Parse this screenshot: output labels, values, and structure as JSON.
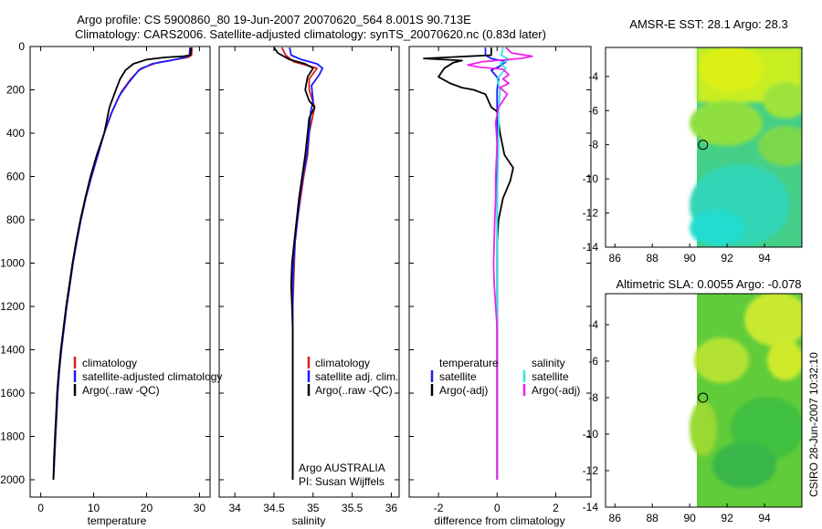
{
  "figure": {
    "title_line1": "Argo profile: CS 5900860_80 19-Jun-2007 20070620_564 8.001S 90.713E",
    "title_line2": "Climatology: CARS2006. Satellite-adjusted climatology: synTS_20070620.nc (0.83d later)",
    "credit": "CSIRO 28-Jun-2007 10:32:10"
  },
  "colors": {
    "climatology": "#d42020",
    "satellite": "#1a1aff",
    "argo": "#000000",
    "sat_salinity": "#33e5e5",
    "argo_adj_salinity": "#ee22ee",
    "map_marker": "#000000"
  },
  "chart_data": [
    {
      "type": "line",
      "id": "temperature_profile",
      "xlabel": "temperature",
      "ylabel": "",
      "xlim": [
        -2,
        32
      ],
      "ylim": [
        2080,
        0
      ],
      "xticks": [
        0,
        10,
        20,
        30
      ],
      "yticks": [
        0,
        200,
        400,
        600,
        800,
        1000,
        1200,
        1400,
        1600,
        1800,
        2000
      ],
      "legend": [
        "climatology",
        "satellite-adjusted climatology",
        "Argo(..raw -QC)"
      ],
      "series": [
        {
          "name": "climatology",
          "color_key": "climatology",
          "points": [
            [
              28.6,
              5
            ],
            [
              28.5,
              40
            ],
            [
              27.8,
              50
            ],
            [
              25.5,
              60
            ],
            [
              22,
              75
            ],
            [
              19,
              100
            ],
            [
              17,
              150
            ],
            [
              15.2,
              210
            ],
            [
              13.5,
              300
            ],
            [
              12,
              400
            ],
            [
              10.8,
              500
            ],
            [
              9.6,
              600
            ],
            [
              8.5,
              700
            ],
            [
              7.6,
              800
            ],
            [
              6.8,
              900
            ],
            [
              6.1,
              1000
            ],
            [
              5.5,
              1100
            ],
            [
              4.9,
              1200
            ],
            [
              4.4,
              1300
            ],
            [
              3.9,
              1400
            ],
            [
              3.5,
              1500
            ],
            [
              3.2,
              1600
            ],
            [
              3.0,
              1700
            ],
            [
              2.8,
              1800
            ],
            [
              2.6,
              1900
            ],
            [
              2.4,
              2000
            ]
          ]
        },
        {
          "name": "satellite",
          "color_key": "satellite",
          "points": [
            [
              28.2,
              5
            ],
            [
              28.1,
              40
            ],
            [
              27.3,
              50
            ],
            [
              24.5,
              65
            ],
            [
              21,
              80
            ],
            [
              18.5,
              110
            ],
            [
              16.5,
              170
            ],
            [
              14.8,
              230
            ],
            [
              13.3,
              310
            ],
            [
              12,
              400
            ],
            [
              10.8,
              500
            ],
            [
              9.6,
              600
            ],
            [
              8.5,
              700
            ],
            [
              7.6,
              800
            ],
            [
              6.8,
              900
            ],
            [
              6.1,
              1000
            ],
            [
              5.5,
              1100
            ],
            [
              4.9,
              1200
            ],
            [
              4.4,
              1300
            ],
            [
              3.9,
              1400
            ],
            [
              3.5,
              1500
            ],
            [
              3.2,
              1600
            ],
            [
              3.0,
              1700
            ],
            [
              2.8,
              1800
            ],
            [
              2.6,
              1900
            ],
            [
              2.4,
              2000
            ]
          ]
        },
        {
          "name": "argo",
          "color_key": "argo",
          "points": [
            [
              28.4,
              5
            ],
            [
              28.3,
              40
            ],
            [
              27,
              45
            ],
            [
              23.5,
              50
            ],
            [
              20,
              60
            ],
            [
              17.5,
              80
            ],
            [
              16,
              110
            ],
            [
              15,
              150
            ],
            [
              14.2,
              200
            ],
            [
              13,
              280
            ],
            [
              12,
              400
            ],
            [
              10.6,
              500
            ],
            [
              9.4,
              600
            ],
            [
              8.4,
              700
            ],
            [
              7.5,
              800
            ],
            [
              6.7,
              900
            ],
            [
              6.0,
              1000
            ],
            [
              5.4,
              1100
            ],
            [
              4.8,
              1200
            ],
            [
              4.3,
              1300
            ],
            [
              3.8,
              1400
            ],
            [
              3.4,
              1500
            ],
            [
              3.1,
              1600
            ],
            [
              2.9,
              1700
            ],
            [
              2.7,
              1800
            ],
            [
              2.5,
              1900
            ],
            [
              2.4,
              2000
            ]
          ]
        }
      ]
    },
    {
      "type": "line",
      "id": "salinity_profile",
      "xlabel": "salinity",
      "ylabel": "",
      "xlim": [
        33.8,
        36.1
      ],
      "ylim": [
        2080,
        0
      ],
      "xticks": [
        34,
        34.5,
        35,
        35.5,
        36
      ],
      "yticks": [
        0,
        200,
        400,
        600,
        800,
        1000,
        1200,
        1400,
        1600,
        1800,
        2000
      ],
      "legend": [
        "climatology",
        "satellite adj. clim.",
        "Argo(..raw -QC)"
      ],
      "annotations": [
        "Argo AUSTRALIA",
        "PI: Susan Wijffels"
      ],
      "series": [
        {
          "name": "climatology",
          "color_key": "climatology",
          "points": [
            [
              34.6,
              5
            ],
            [
              34.65,
              40
            ],
            [
              34.75,
              70
            ],
            [
              34.95,
              90
            ],
            [
              35.05,
              100
            ],
            [
              34.95,
              150
            ],
            [
              34.95,
              200
            ],
            [
              35.02,
              280
            ],
            [
              34.95,
              400
            ],
            [
              34.93,
              500
            ],
            [
              34.88,
              600
            ],
            [
              34.84,
              700
            ],
            [
              34.8,
              800
            ],
            [
              34.77,
              900
            ],
            [
              34.76,
              1000
            ],
            [
              34.75,
              1100
            ],
            [
              34.74,
              1200
            ],
            [
              34.74,
              1400
            ],
            [
              34.74,
              1600
            ],
            [
              34.74,
              1800
            ],
            [
              34.74,
              2000
            ]
          ]
        },
        {
          "name": "satellite",
          "color_key": "satellite",
          "points": [
            [
              34.7,
              5
            ],
            [
              34.72,
              40
            ],
            [
              34.85,
              60
            ],
            [
              35.05,
              80
            ],
            [
              35.12,
              100
            ],
            [
              35.08,
              130
            ],
            [
              34.98,
              180
            ],
            [
              35.0,
              250
            ],
            [
              34.97,
              300
            ],
            [
              34.95,
              400
            ],
            [
              34.92,
              500
            ],
            [
              34.87,
              600
            ],
            [
              34.83,
              700
            ],
            [
              34.8,
              800
            ],
            [
              34.77,
              900
            ],
            [
              34.75,
              1000
            ],
            [
              34.74,
              1100
            ],
            [
              34.74,
              1200
            ],
            [
              34.74,
              1400
            ],
            [
              34.74,
              1600
            ],
            [
              34.74,
              1800
            ],
            [
              34.74,
              2000
            ]
          ]
        },
        {
          "name": "argo",
          "color_key": "argo",
          "points": [
            [
              34.5,
              5
            ],
            [
              34.55,
              30
            ],
            [
              34.7,
              60
            ],
            [
              34.9,
              80
            ],
            [
              35.0,
              100
            ],
            [
              34.93,
              140
            ],
            [
              34.9,
              200
            ],
            [
              34.95,
              250
            ],
            [
              35.02,
              280
            ],
            [
              34.95,
              330
            ],
            [
              34.93,
              400
            ],
            [
              34.9,
              500
            ],
            [
              34.86,
              600
            ],
            [
              34.82,
              700
            ],
            [
              34.79,
              800
            ],
            [
              34.76,
              900
            ],
            [
              34.73,
              1000
            ],
            [
              34.72,
              1100
            ],
            [
              34.73,
              1200
            ],
            [
              34.74,
              1300
            ],
            [
              34.74,
              1400
            ],
            [
              34.74,
              1600
            ],
            [
              34.74,
              1800
            ],
            [
              34.74,
              2000
            ]
          ]
        }
      ]
    },
    {
      "type": "line",
      "id": "difference_profile",
      "xlabel": "difference from climatology",
      "ylabel": "",
      "xlim": [
        -3,
        3.2
      ],
      "ylim": [
        2080,
        0
      ],
      "xticks": [
        -2,
        0,
        2
      ],
      "yticks": [
        0,
        200,
        400,
        600,
        800,
        1000,
        1200,
        1400,
        1600,
        1800,
        2000
      ],
      "legend": [
        "temperature",
        "satellite",
        "Argo(-adj)",
        "salinity",
        "satellite",
        "Argo(-adj)"
      ],
      "series": [
        {
          "name": "temperature satellite",
          "color_key": "satellite",
          "points": [
            [
              -0.4,
              5
            ],
            [
              -0.4,
              40
            ],
            [
              -0.2,
              55
            ],
            [
              0.3,
              70
            ],
            [
              0.1,
              90
            ],
            [
              -0.2,
              110
            ],
            [
              0.05,
              150
            ],
            [
              0.0,
              200
            ],
            [
              0.0,
              300
            ],
            [
              0.0,
              2000
            ]
          ]
        },
        {
          "name": "temperature Argo(-adj)",
          "color_key": "argo",
          "points": [
            [
              -0.2,
              5
            ],
            [
              -0.2,
              40
            ],
            [
              -2.5,
              55
            ],
            [
              -1.2,
              65
            ],
            [
              -1.5,
              75
            ],
            [
              -1.8,
              100
            ],
            [
              -2.0,
              140
            ],
            [
              -1.6,
              170
            ],
            [
              -1.2,
              190
            ],
            [
              -0.8,
              200
            ],
            [
              -0.4,
              220
            ],
            [
              -0.2,
              280
            ],
            [
              0.0,
              300
            ],
            [
              0.1,
              400
            ],
            [
              0.25,
              500
            ],
            [
              0.55,
              560
            ],
            [
              0.45,
              620
            ],
            [
              0.2,
              700
            ],
            [
              0.05,
              800
            ],
            [
              0.0,
              900
            ],
            [
              0.0,
              2000
            ]
          ]
        },
        {
          "name": "salinity satellite",
          "color_key": "sat_salinity",
          "points": [
            [
              0.2,
              5
            ],
            [
              0.15,
              40
            ],
            [
              0.4,
              60
            ],
            [
              0.1,
              80
            ],
            [
              0.3,
              100
            ],
            [
              0.0,
              150
            ],
            [
              0.1,
              200
            ],
            [
              0.05,
              300
            ],
            [
              0.05,
              400
            ],
            [
              0.04,
              500
            ],
            [
              0.02,
              600
            ],
            [
              0.0,
              700
            ],
            [
              0.0,
              2000
            ]
          ]
        },
        {
          "name": "salinity Argo(-adj)",
          "color_key": "argo_adj_salinity",
          "points": [
            [
              0.3,
              5
            ],
            [
              0.5,
              30
            ],
            [
              1.2,
              45
            ],
            [
              0.8,
              55
            ],
            [
              -0.5,
              70
            ],
            [
              -1.0,
              85
            ],
            [
              -0.6,
              95
            ],
            [
              0.2,
              105
            ],
            [
              0.4,
              130
            ],
            [
              0.2,
              150
            ],
            [
              0.4,
              170
            ],
            [
              0.1,
              190
            ],
            [
              0.35,
              220
            ],
            [
              0.05,
              280
            ],
            [
              -0.05,
              350
            ],
            [
              0.0,
              450
            ],
            [
              -0.05,
              600
            ],
            [
              -0.05,
              700
            ],
            [
              -0.08,
              800
            ],
            [
              -0.1,
              900
            ],
            [
              -0.12,
              1000
            ],
            [
              -0.1,
              1100
            ],
            [
              -0.05,
              1200
            ],
            [
              0.0,
              1300
            ],
            [
              0.0,
              2000
            ]
          ]
        }
      ]
    },
    {
      "type": "heatmap",
      "id": "sst_map",
      "title": "AMSR-E SST: 28.1 Argo: 28.3",
      "xlim": [
        85.5,
        96
      ],
      "ylim": [
        -14,
        -2.3
      ],
      "xticks": [
        86,
        88,
        90,
        92,
        94
      ],
      "yticks": [
        -4,
        -6,
        -8,
        -10,
        -12,
        -14
      ],
      "data_lon_range": [
        90,
        96
      ],
      "marker": {
        "lon": 90.713,
        "lat": -8.001
      }
    },
    {
      "type": "heatmap",
      "id": "sla_map",
      "title": "Altimetric SLA: 0.0055 Argo: -0.078",
      "xlim": [
        85.5,
        96
      ],
      "ylim": [
        -14,
        -2.3
      ],
      "xticks": [
        86,
        88,
        90,
        92,
        94
      ],
      "yticks": [
        -4,
        -6,
        -8,
        -10,
        -12,
        -14
      ],
      "data_lon_range": [
        90,
        96
      ],
      "marker": {
        "lon": 90.713,
        "lat": -8.001
      }
    }
  ]
}
